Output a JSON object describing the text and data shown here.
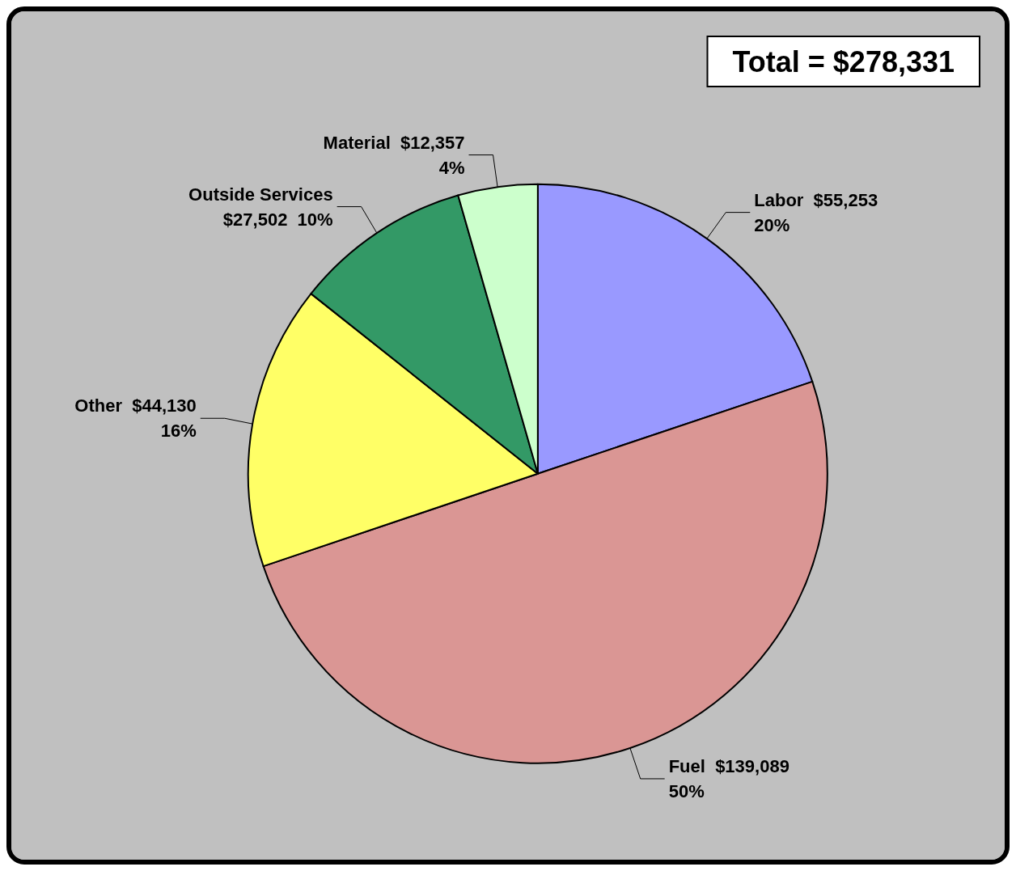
{
  "chart_data": {
    "type": "pie",
    "categories": [
      "Labor",
      "Fuel",
      "Other",
      "Outside Services",
      "Material"
    ],
    "values": [
      55253,
      139089,
      44130,
      27502,
      12357
    ],
    "colors": [
      "#9999ff",
      "#da9694",
      "#ffff66",
      "#339966",
      "#ccffcc"
    ],
    "value_labels": [
      "$55,253\n20%",
      "$139,089\n50%",
      "$44,130\n16%",
      "$27,502  10%",
      "$12,357\n4%"
    ],
    "annotations": [
      "Total = $278,331"
    ],
    "legend": false
  }
}
